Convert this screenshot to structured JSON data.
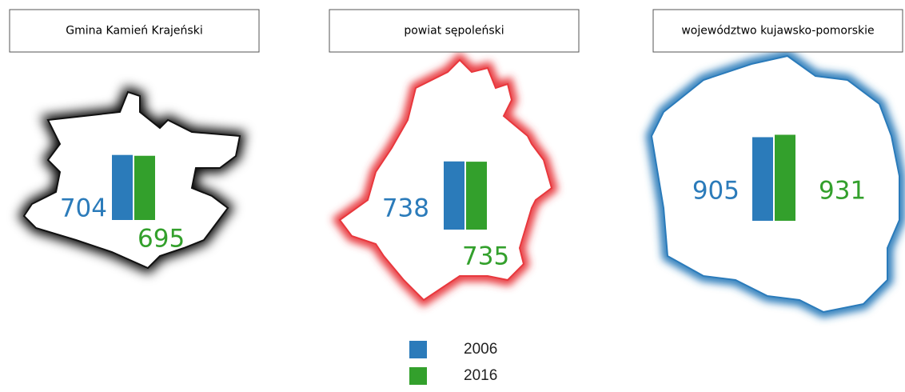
{
  "chart_data": [
    {
      "type": "bar",
      "title": "Gmina Kamień Krajeński",
      "series": [
        {
          "name": "2006",
          "color": "#2b7bba",
          "values": [
            704
          ]
        },
        {
          "name": "2016",
          "color": "#33a02c",
          "values": [
            695
          ]
        }
      ]
    },
    {
      "type": "bar",
      "title": "powiat sępoleński",
      "series": [
        {
          "name": "2006",
          "color": "#2b7bba",
          "values": [
            738
          ]
        },
        {
          "name": "2016",
          "color": "#33a02c",
          "values": [
            735
          ]
        }
      ]
    },
    {
      "type": "bar",
      "title": "województwo kujawsko-pomorskie",
      "series": [
        {
          "name": "2006",
          "color": "#2b7bba",
          "values": [
            905
          ]
        },
        {
          "name": "2016",
          "color": "#33a02c",
          "values": [
            931
          ]
        }
      ]
    }
  ]
}
